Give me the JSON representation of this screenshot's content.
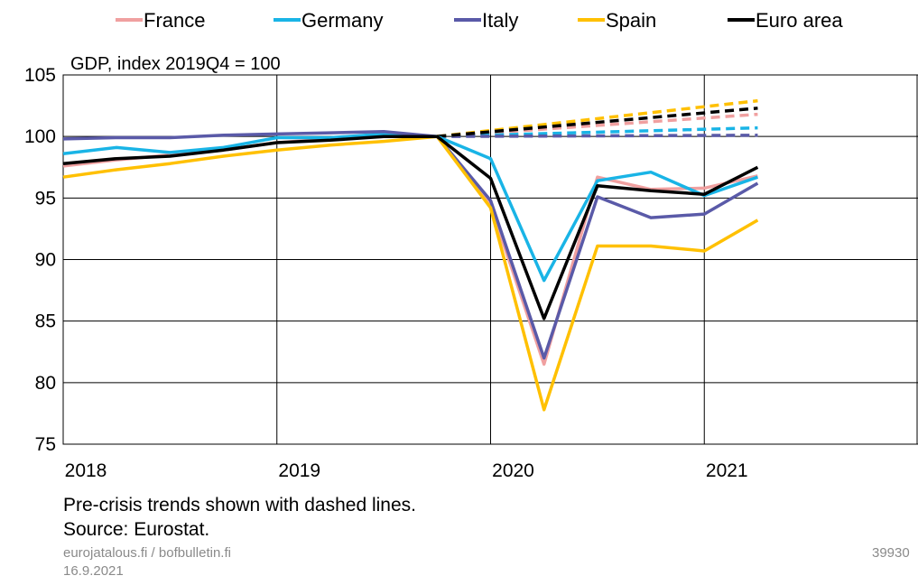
{
  "chart_data": {
    "type": "line",
    "title": "GDP, index 2019Q4 = 100",
    "xlabel": "",
    "ylabel": "",
    "ylim": [
      75,
      105
    ],
    "yticks": [
      75,
      80,
      85,
      90,
      95,
      100,
      105
    ],
    "xlim": [
      2018.0,
      2022.0
    ],
    "xticks": [
      {
        "label": "2018",
        "value": 2018.0
      },
      {
        "label": "2019",
        "value": 2019.0
      },
      {
        "label": "2020",
        "value": 2020.0
      },
      {
        "label": "2021",
        "value": 2021.0
      }
    ],
    "grid": true,
    "legend_position": "top",
    "quarters": [
      "2018Q1",
      "2018Q2",
      "2018Q3",
      "2018Q4",
      "2019Q1",
      "2019Q2",
      "2019Q3",
      "2019Q4",
      "2020Q1",
      "2020Q2",
      "2020Q3",
      "2020Q4",
      "2021Q1",
      "2021Q2"
    ],
    "series": [
      {
        "name": "France",
        "color": "#f0a0a0",
        "values": [
          97.6,
          98.1,
          98.5,
          98.9,
          99.5,
          99.8,
          100.0,
          100.0,
          94.4,
          81.5,
          96.7,
          95.7,
          95.8,
          96.8
        ],
        "trend": [
          100.0,
          101.8
        ]
      },
      {
        "name": "Germany",
        "color": "#19b4e6",
        "values": [
          98.6,
          99.1,
          98.7,
          99.1,
          99.9,
          99.9,
          100.2,
          100.0,
          98.2,
          88.3,
          96.4,
          97.1,
          95.2,
          96.7
        ],
        "trend": [
          100.0,
          100.7
        ]
      },
      {
        "name": "Italy",
        "color": "#5a5aa8",
        "values": [
          99.8,
          99.9,
          99.9,
          100.1,
          100.2,
          100.3,
          100.4,
          100.0,
          94.8,
          82.0,
          95.1,
          93.4,
          93.7,
          96.2
        ],
        "trend": [
          100.0,
          100.1
        ]
      },
      {
        "name": "Spain",
        "color": "#ffc000",
        "values": [
          96.7,
          97.3,
          97.8,
          98.4,
          98.9,
          99.3,
          99.6,
          100.0,
          94.2,
          77.8,
          91.1,
          91.1,
          90.7,
          93.2
        ],
        "trend": [
          100.0,
          102.9
        ]
      },
      {
        "name": "Euro area",
        "color": "#000000",
        "values": [
          97.8,
          98.2,
          98.4,
          98.9,
          99.5,
          99.7,
          100.0,
          100.0,
          96.6,
          85.2,
          96.0,
          95.6,
          95.3,
          97.5
        ],
        "trend": [
          100.0,
          102.3
        ]
      }
    ]
  },
  "notes": {
    "line1": "Pre-crisis trends shown with dashed lines.",
    "line2": "Source: Eurostat."
  },
  "footer": {
    "site": "eurojatalous.fi / bofbulletin.fi",
    "date": "16.9.2021",
    "id": "39930"
  }
}
